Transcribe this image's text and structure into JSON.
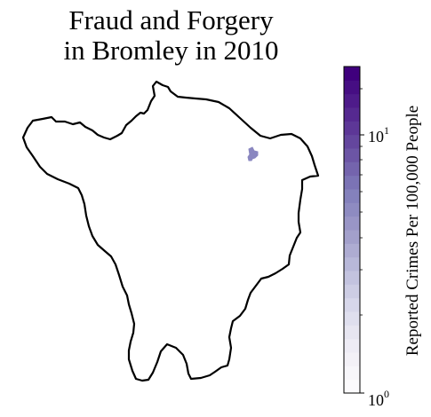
{
  "title": {
    "line1": "Fraud and Forgery",
    "line2": "in Bromley in 2010"
  },
  "map": {
    "region_name": "Bromley",
    "outline_color": "#000000",
    "fill_color": "#ffffff",
    "highlight_area_color": "#8a87c0"
  },
  "colorbar": {
    "label": "Reported Crimes Per 100,000 People",
    "scale": "log",
    "colormap": "Purples",
    "min_value": 1,
    "max_value": 18,
    "ticks": [
      {
        "base": "10",
        "exponent": "0",
        "value": 1
      },
      {
        "base": "10",
        "exponent": "1",
        "value": 10
      }
    ],
    "color_stops": [
      "#fcfbfd",
      "#efedf5",
      "#dadaeb",
      "#bcbddc",
      "#9e9ac8",
      "#807dba",
      "#6a51a3",
      "#54278f",
      "#3f007d"
    ]
  }
}
